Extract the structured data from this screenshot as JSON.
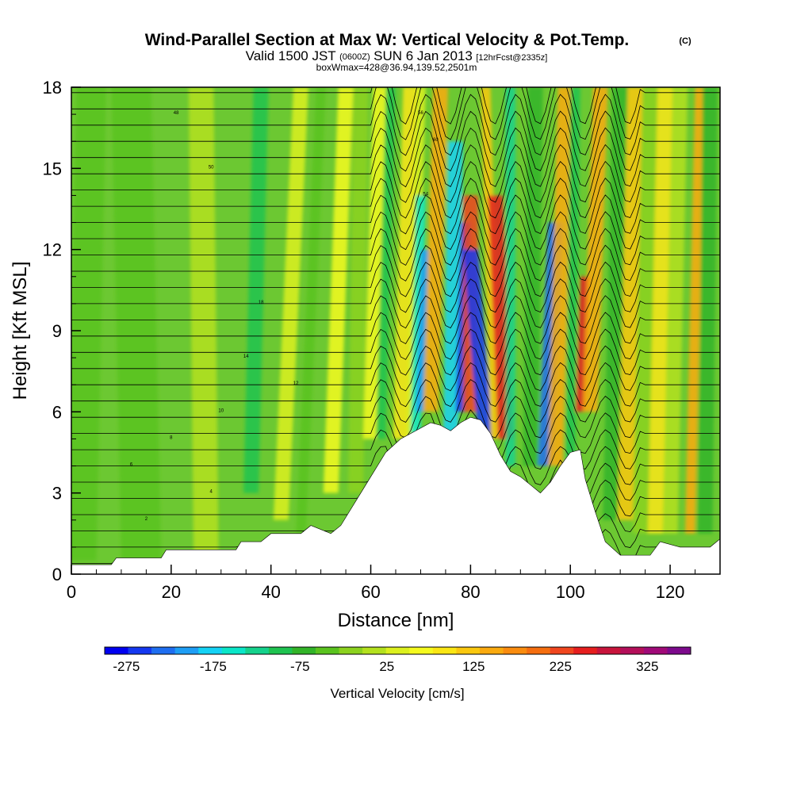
{
  "chart_data": {
    "type": "heatmap",
    "title": "Wind-Parallel Section at Max W: Vertical Velocity & Pot.Temp.",
    "title_mark": "(C)",
    "subtitle_prefix": "Valid 1500 JST",
    "subtitle_utc": "(0600Z)",
    "subtitle_date": "SUN 6 Jan 2013",
    "subtitle_fcst": "[12hrFcst@2335z]",
    "subtitle3": "boxWmax=428@36.94,139.52,2501m",
    "xlabel": "Distance [nm]",
    "ylabel": "Height [Kft MSL]",
    "xlim": [
      0,
      130
    ],
    "ylim": [
      0,
      18
    ],
    "xticks": [
      "0",
      "20",
      "40",
      "60",
      "80",
      "100",
      "120"
    ],
    "yticks": [
      "0",
      "3",
      "6",
      "9",
      "12",
      "15",
      "18"
    ],
    "colorbar": {
      "label": "Vertical Velocity [cm/s]",
      "ticks": [
        "-275",
        "-175",
        "-75",
        "25",
        "125",
        "225",
        "325"
      ],
      "range": [
        -300,
        375
      ],
      "colors": [
        "#0000f0",
        "#1438f0",
        "#1e6ef0",
        "#1e9ef5",
        "#14d2f5",
        "#0ae6c8",
        "#14d28c",
        "#1ec350",
        "#32b428",
        "#5ac31e",
        "#8cd21e",
        "#b4e11e",
        "#dcf01e",
        "#f5fa1e",
        "#fae614",
        "#fac80f",
        "#faaa0f",
        "#fa8c0f",
        "#f56e0f",
        "#f0461e",
        "#e61e1e",
        "#c8143c",
        "#b40f5a",
        "#a00a78",
        "#7d0a8c"
      ]
    },
    "terrain_nm_kft": [
      [
        0,
        0.35
      ],
      [
        8,
        0.35
      ],
      [
        9,
        0.6
      ],
      [
        18,
        0.6
      ],
      [
        19,
        0.9
      ],
      [
        33,
        0.9
      ],
      [
        34,
        1.2
      ],
      [
        38,
        1.2
      ],
      [
        40,
        1.5
      ],
      [
        46,
        1.5
      ],
      [
        48,
        1.8
      ],
      [
        52,
        1.5
      ],
      [
        54,
        1.8
      ],
      [
        58,
        3
      ],
      [
        60,
        3.6
      ],
      [
        63,
        4.5
      ],
      [
        66,
        5.0
      ],
      [
        69,
        5.3
      ],
      [
        72,
        5.6
      ],
      [
        74,
        5.5
      ],
      [
        76,
        5.3
      ],
      [
        78,
        5.6
      ],
      [
        80,
        5.8
      ],
      [
        82,
        5.7
      ],
      [
        84,
        5.2
      ],
      [
        86,
        4.4
      ],
      [
        88,
        3.8
      ],
      [
        90,
        3.6
      ],
      [
        92,
        3.3
      ],
      [
        94,
        3.0
      ],
      [
        96,
        3.4
      ],
      [
        98,
        4.0
      ],
      [
        100,
        4.5
      ],
      [
        102,
        4.6
      ],
      [
        103,
        3.5
      ],
      [
        105,
        2.3
      ],
      [
        107,
        1.2
      ],
      [
        110,
        0.7
      ],
      [
        116,
        0.7
      ],
      [
        118,
        1.2
      ],
      [
        122,
        1.0
      ],
      [
        128,
        1.0
      ],
      [
        130,
        1.3
      ]
    ],
    "theta_label_values": [
      "56",
      "60",
      "54",
      "50",
      "48",
      "18",
      "14",
      "12",
      "10",
      "8",
      "6",
      "4",
      "2"
    ]
  }
}
